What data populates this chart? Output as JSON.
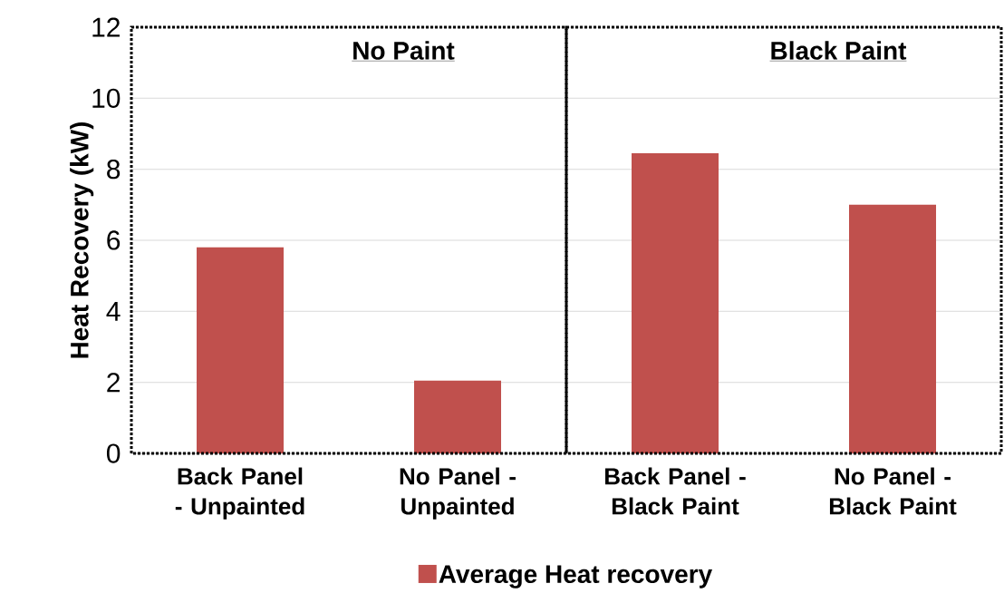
{
  "chart_data": {
    "type": "bar",
    "ylabel": "Heat Recovery (kW)",
    "categories": [
      "Back Panel - Unpainted",
      "No Panel - Unpainted",
      "Back Panel - Black Paint",
      "No Panel - Black Paint"
    ],
    "series": [
      {
        "name": "Average Heat recovery",
        "color": "#c0504d",
        "values": [
          5.8,
          2.05,
          8.45,
          7.0
        ]
      }
    ],
    "ylim": [
      0,
      12
    ],
    "yticks": [
      0,
      2,
      4,
      6,
      8,
      10,
      12
    ],
    "grid": "y",
    "legend": "bottom",
    "annotations": [
      "No Paint",
      "Black Paint"
    ]
  }
}
